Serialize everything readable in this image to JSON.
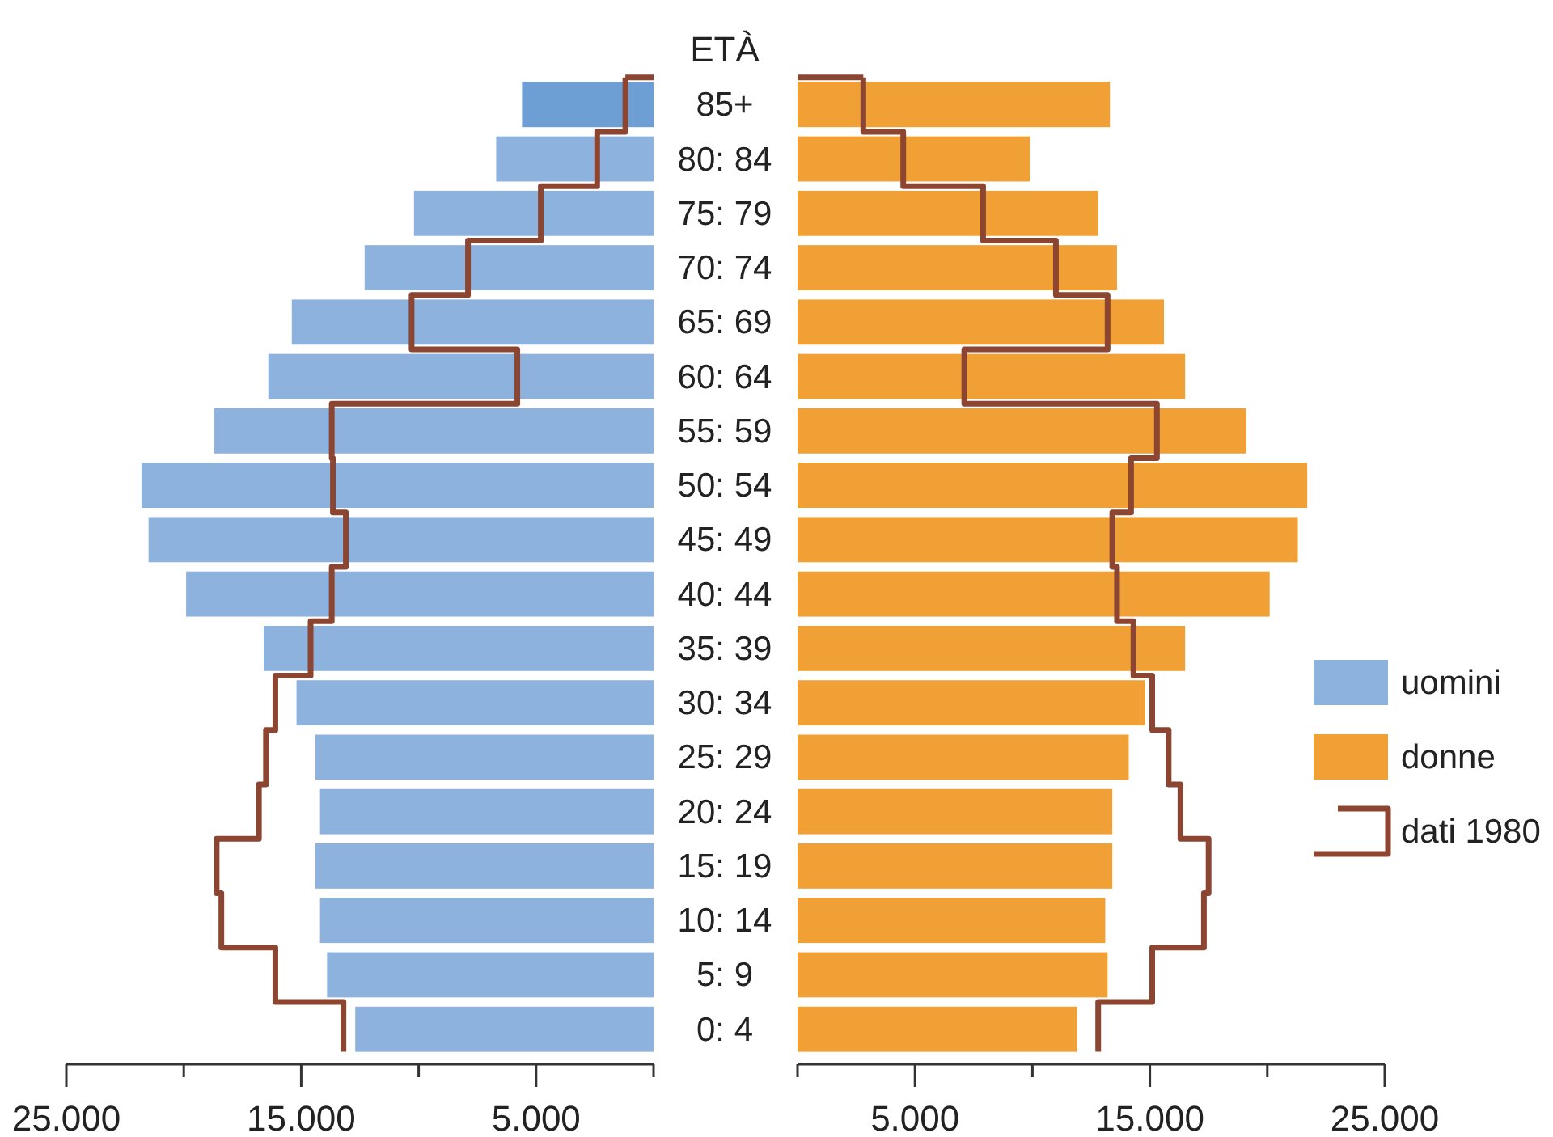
{
  "chart_data": [
    {
      "type": "bar",
      "orientation": "horizontal",
      "ylabel": "ETÀ",
      "categories": [
        "85+",
        "80: 84",
        "75: 79",
        "70: 74",
        "65: 69",
        "60: 64",
        "55: 59",
        "50: 54",
        "45: 49",
        "40: 44",
        "35: 39",
        "30: 34",
        "25: 29",
        "20: 24",
        "15: 19",
        "10: 14",
        "5: 9",
        "0: 4"
      ],
      "xlim": [
        25000,
        0
      ],
      "xticks": [
        {
          "value": 25000,
          "label": "25.000"
        },
        {
          "value": 20000,
          "label": null
        },
        {
          "value": 15000,
          "label": "15.000"
        },
        {
          "value": 10000,
          "label": null
        },
        {
          "value": 5000,
          "label": "5.000"
        },
        {
          "value": 0,
          "label": null
        }
      ],
      "series": [
        {
          "name": "uomini",
          "type": "bar",
          "color": "#8db2dd",
          "colors": [
            "#6e9fd4",
            "#8db2dd",
            "#8db2dd",
            "#8db2dd",
            "#8db2dd",
            "#8db2dd",
            "#8db2dd",
            "#8db2dd",
            "#8db2dd",
            "#8db2dd",
            "#8db2dd",
            "#8db2dd",
            "#8db2dd",
            "#8db2dd",
            "#8db2dd",
            "#8db2dd",
            "#8db2dd",
            "#8db2dd"
          ],
          "values": [
            5600,
            6700,
            10200,
            12300,
            15400,
            16400,
            18700,
            21800,
            21500,
            19900,
            16600,
            15200,
            14400,
            14200,
            14400,
            14200,
            13900,
            12700
          ]
        },
        {
          "type": "step",
          "color": "#8b4530",
          "values": [
            1200,
            2400,
            4800,
            7900,
            10300,
            5800,
            13700,
            13650,
            13100,
            13700,
            14600,
            16100,
            16500,
            16800,
            18600,
            18400,
            16100,
            13200
          ]
        }
      ]
    },
    {
      "type": "bar",
      "orientation": "horizontal",
      "tick_labels": "x",
      "legend": "right",
      "categories": [
        null,
        null,
        null,
        null,
        null,
        null,
        null,
        null,
        null,
        null,
        null,
        null,
        null,
        null,
        null,
        null,
        null,
        null
      ],
      "xlim": [
        0,
        25000
      ],
      "xticks": [
        {
          "value": 0,
          "label": null
        },
        {
          "value": 5000,
          "label": "5.000"
        },
        {
          "value": 10000,
          "label": null
        },
        {
          "value": 15000,
          "label": "15.000"
        },
        {
          "value": 20000,
          "label": null
        },
        {
          "value": 25000,
          "label": "25.000"
        }
      ],
      "series": [
        {
          "name": "donne",
          "type": "bar",
          "color": "#f0a035",
          "values": [
            13300,
            9900,
            12800,
            13600,
            15600,
            16500,
            19100,
            21700,
            21300,
            20100,
            16500,
            14800,
            14100,
            13400,
            13400,
            13100,
            13200,
            11900
          ]
        },
        {
          "name": "dati 1980",
          "type": "step",
          "color": "#8b4530",
          "values": [
            2800,
            4500,
            7900,
            11000,
            13200,
            7100,
            15300,
            14200,
            13400,
            13600,
            14300,
            15100,
            15800,
            16300,
            17500,
            17300,
            15100,
            12800
          ]
        }
      ]
    }
  ]
}
